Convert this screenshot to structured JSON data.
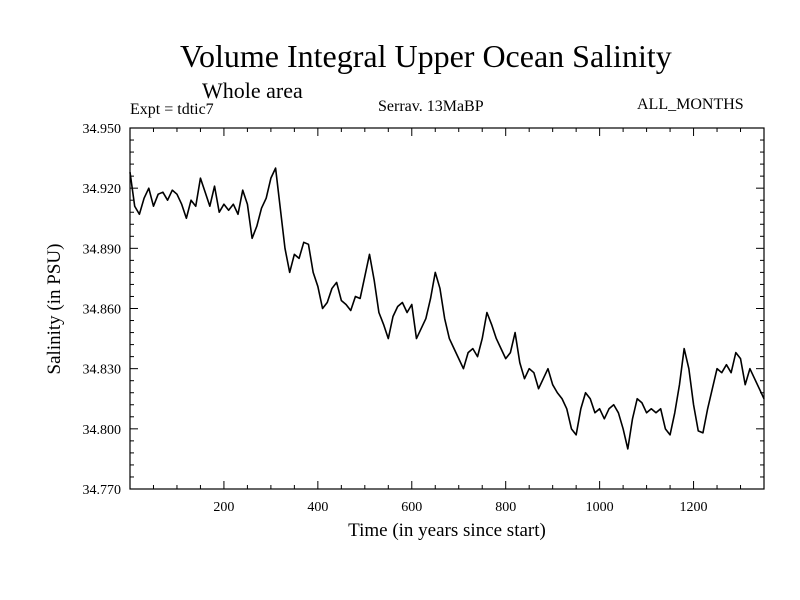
{
  "chart_data": {
    "type": "line",
    "title": "Volume Integral Upper Ocean Salinity",
    "subtitle": "Whole area",
    "annotations": {
      "left": "Expt = tdtic7",
      "center": "Serrav.   13MaBP",
      "right": "ALL_MONTHS"
    },
    "xlabel": "Time (in years since start)",
    "ylabel": "Salinity (in PSU)",
    "xlim": [
      0,
      1350
    ],
    "ylim": [
      34.77,
      34.95
    ],
    "xticks": [
      200,
      400,
      600,
      800,
      1000,
      1200
    ],
    "xtick_labels": [
      "200",
      "400",
      "600",
      "800",
      "1000",
      "1200"
    ],
    "yticks": [
      34.77,
      34.8,
      34.83,
      34.86,
      34.89,
      34.92,
      34.95
    ],
    "ytick_labels": [
      "34.770",
      "34.800",
      "34.830",
      "34.860",
      "34.890",
      "34.920",
      "34.950"
    ],
    "grid": false,
    "series": [
      {
        "name": "Salinity",
        "x": [
          0,
          10,
          20,
          30,
          40,
          50,
          60,
          70,
          80,
          90,
          100,
          110,
          120,
          130,
          140,
          150,
          160,
          170,
          180,
          190,
          200,
          210,
          220,
          230,
          240,
          250,
          260,
          270,
          280,
          290,
          300,
          310,
          320,
          330,
          340,
          350,
          360,
          370,
          380,
          390,
          400,
          410,
          420,
          430,
          440,
          450,
          460,
          470,
          480,
          490,
          500,
          510,
          520,
          530,
          540,
          550,
          560,
          570,
          580,
          590,
          600,
          610,
          620,
          630,
          640,
          650,
          660,
          670,
          680,
          690,
          700,
          710,
          720,
          730,
          740,
          750,
          760,
          770,
          780,
          790,
          800,
          810,
          820,
          830,
          840,
          850,
          860,
          870,
          880,
          890,
          900,
          910,
          920,
          930,
          940,
          950,
          960,
          970,
          980,
          990,
          1000,
          1010,
          1020,
          1030,
          1040,
          1050,
          1060,
          1070,
          1080,
          1090,
          1100,
          1110,
          1120,
          1130,
          1140,
          1150,
          1160,
          1170,
          1180,
          1190,
          1200,
          1210,
          1220,
          1230,
          1240,
          1250,
          1260,
          1270,
          1280,
          1290,
          1300,
          1310,
          1320,
          1330,
          1340,
          1350
        ],
        "values": [
          34.928,
          34.911,
          34.907,
          34.915,
          34.92,
          34.911,
          34.917,
          34.918,
          34.914,
          34.919,
          34.917,
          34.912,
          34.905,
          34.914,
          34.911,
          34.925,
          34.918,
          34.911,
          34.921,
          34.908,
          34.912,
          34.909,
          34.912,
          34.907,
          34.919,
          34.912,
          34.895,
          34.901,
          34.91,
          34.915,
          34.925,
          34.93,
          34.91,
          34.89,
          34.878,
          34.887,
          34.885,
          34.893,
          34.892,
          34.878,
          34.871,
          34.86,
          34.863,
          34.87,
          34.873,
          34.864,
          34.862,
          34.859,
          34.866,
          34.865,
          34.876,
          34.887,
          34.874,
          34.858,
          34.852,
          34.845,
          34.856,
          34.861,
          34.863,
          34.858,
          34.862,
          34.845,
          34.85,
          34.855,
          34.865,
          34.878,
          34.87,
          34.855,
          34.845,
          34.84,
          34.835,
          34.83,
          34.838,
          34.84,
          34.836,
          34.845,
          34.858,
          34.852,
          34.845,
          34.84,
          34.835,
          34.838,
          34.848,
          34.833,
          34.825,
          34.83,
          34.828,
          34.82,
          34.825,
          34.83,
          34.822,
          34.818,
          34.815,
          34.81,
          34.8,
          34.797,
          34.81,
          34.818,
          34.815,
          34.808,
          34.81,
          34.805,
          34.81,
          34.812,
          34.808,
          34.8,
          34.79,
          34.805,
          34.815,
          34.813,
          34.808,
          34.81,
          34.808,
          34.81,
          34.8,
          34.797,
          34.808,
          34.822,
          34.84,
          34.83,
          34.812,
          34.799,
          34.798,
          34.81,
          34.82,
          34.83,
          34.828,
          34.832,
          34.828,
          34.838,
          34.835,
          34.822,
          34.83,
          34.825,
          34.82,
          34.815
        ]
      }
    ]
  }
}
